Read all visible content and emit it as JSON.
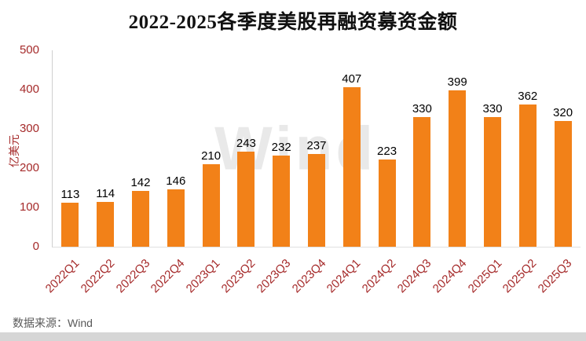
{
  "chart_data": {
    "type": "bar",
    "title": "2022-2025各季度美股再融资募资金额",
    "ylabel": "亿美元",
    "xlabel": "",
    "categories": [
      "2022Q1",
      "2022Q2",
      "2022Q3",
      "2022Q4",
      "2023Q1",
      "2023Q2",
      "2023Q3",
      "2023Q4",
      "2024Q1",
      "2024Q2",
      "2024Q3",
      "2024Q4",
      "2025Q1",
      "2025Q2",
      "2025Q3"
    ],
    "values": [
      113,
      114,
      142,
      146,
      210,
      243,
      232,
      237,
      407,
      223,
      330,
      399,
      330,
      362,
      320
    ],
    "ylim": [
      0,
      500
    ],
    "yticks": [
      0,
      100,
      200,
      300,
      400,
      500
    ],
    "grid": false,
    "legend": "none",
    "bar_color": "#F28118",
    "axis_text_color": "#A52A2A",
    "value_label_color": "#000000"
  },
  "watermark": {
    "text": "Wind"
  },
  "footer": {
    "source_text": "数据来源：Wind",
    "strip_color": "#D6D6D6"
  }
}
